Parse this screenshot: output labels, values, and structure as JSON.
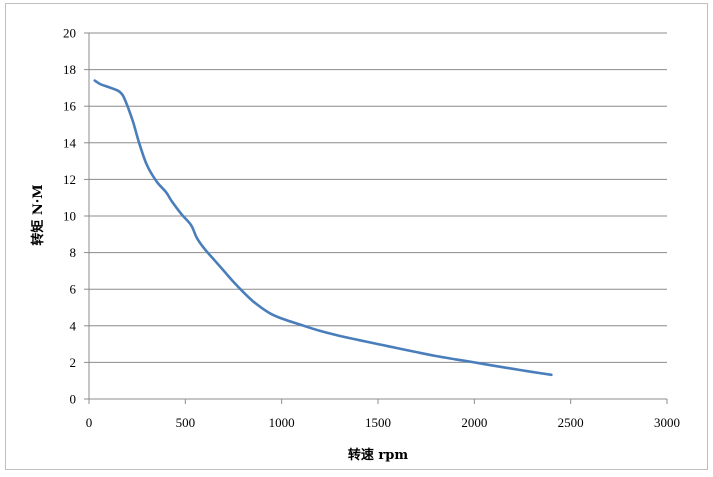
{
  "chart_data": {
    "type": "line",
    "xlabel": "转速 rpm",
    "ylabel": "转矩 N·M",
    "xlim": [
      0,
      3000
    ],
    "ylim": [
      0,
      20
    ],
    "x_ticks": [
      0,
      500,
      1000,
      1500,
      2000,
      2500,
      3000
    ],
    "y_ticks": [
      0,
      2,
      4,
      6,
      8,
      10,
      12,
      14,
      16,
      18,
      20
    ],
    "grid": "horizontal",
    "series": [
      {
        "color": "#4a7ebb",
        "x": [
          30,
          60,
          100,
          150,
          175,
          200,
          230,
          260,
          300,
          350,
          400,
          430,
          480,
          530,
          560,
          600,
          650,
          700,
          750,
          800,
          850,
          900,
          950,
          1000,
          1100,
          1200,
          1300,
          1400,
          1500,
          1600,
          1700,
          1800,
          1900,
          2000,
          2100,
          2200,
          2300,
          2400
        ],
        "y": [
          17.4,
          17.2,
          17.05,
          16.85,
          16.6,
          16.0,
          15.1,
          14.0,
          12.8,
          11.9,
          11.3,
          10.8,
          10.1,
          9.5,
          8.8,
          8.2,
          7.6,
          7.0,
          6.4,
          5.85,
          5.35,
          4.95,
          4.62,
          4.4,
          4.05,
          3.72,
          3.45,
          3.22,
          3.0,
          2.78,
          2.56,
          2.35,
          2.17,
          2.0,
          1.82,
          1.65,
          1.48,
          1.32
        ]
      }
    ]
  }
}
